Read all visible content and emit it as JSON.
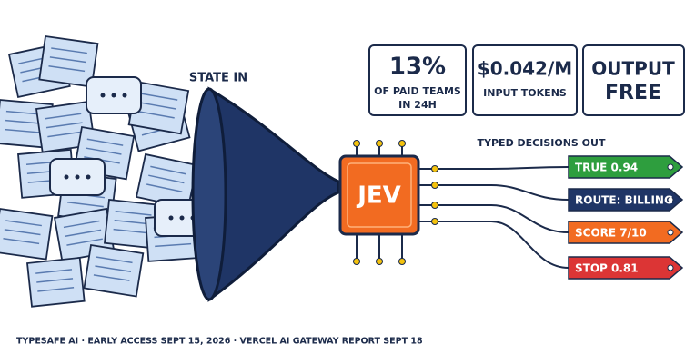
{
  "funnel_label": "STATE IN",
  "stats": [
    {
      "headline": "13%",
      "caption": [
        "OF PAID TEAMS",
        "IN 24H"
      ]
    },
    {
      "headline": "$0.042/M",
      "caption": [
        "INPUT TOKENS"
      ]
    },
    {
      "headline": [
        "OUTPUT",
        "FREE"
      ]
    }
  ],
  "chip_label": "JEV",
  "outputs_title": "TYPED DECISIONS OUT",
  "outputs": [
    "TRUE 0.94",
    "ROUTE: BILLING",
    "SCORE 7/10",
    "STOP 0.81"
  ],
  "footer": "TYPESAFE AI · EARLY ACCESS SEPT 15, 2026 · VERCEL AI GATEWAY REPORT SEPT 18"
}
